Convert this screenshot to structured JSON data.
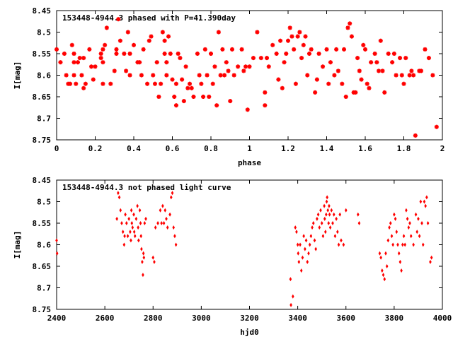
{
  "chart_data": [
    {
      "type": "scatter",
      "title": "153448-4944.3 phased with P=41.390day",
      "xlabel": "phase",
      "ylabel": "I[mag]",
      "xlim": [
        0,
        2
      ],
      "ylim": [
        8.75,
        8.45
      ],
      "y_inverted": true,
      "grid": false,
      "marker_color": "#ff0000",
      "marker": "star",
      "x_ticks": [
        "0",
        "0.2",
        "0.4",
        "0.6",
        "0.8",
        "1",
        "1.2",
        "1.4",
        "1.6",
        "1.8",
        "2"
      ],
      "y_ticks": [
        "8.45",
        "8.5",
        "8.55",
        "8.6",
        "8.65",
        "8.7",
        "8.75"
      ],
      "points": [
        [
          0.0,
          8.54
        ],
        [
          0.02,
          8.57
        ],
        [
          0.04,
          8.55
        ],
        [
          0.05,
          8.6
        ],
        [
          0.06,
          8.62
        ],
        [
          0.07,
          8.62
        ],
        [
          0.08,
          8.53
        ],
        [
          0.09,
          8.55
        ],
        [
          0.09,
          8.57
        ],
        [
          0.09,
          8.6
        ],
        [
          0.1,
          8.62
        ],
        [
          0.11,
          8.57
        ],
        [
          0.12,
          8.56
        ],
        [
          0.13,
          8.6
        ],
        [
          0.14,
          8.63
        ],
        [
          0.14,
          8.56
        ],
        [
          0.15,
          8.62
        ],
        [
          0.17,
          8.54
        ],
        [
          0.18,
          8.58
        ],
        [
          0.19,
          8.61
        ],
        [
          0.2,
          8.58
        ],
        [
          0.23,
          8.56
        ],
        [
          0.23,
          8.55
        ],
        [
          0.24,
          8.54
        ],
        [
          0.24,
          8.57
        ],
        [
          0.24,
          8.62
        ],
        [
          0.25,
          8.53
        ],
        [
          0.26,
          8.49
        ],
        [
          0.28,
          8.62
        ],
        [
          0.3,
          8.59
        ],
        [
          0.31,
          8.54
        ],
        [
          0.31,
          8.55
        ],
        [
          0.32,
          8.47
        ],
        [
          0.33,
          8.52
        ],
        [
          0.35,
          8.55
        ],
        [
          0.36,
          8.59
        ],
        [
          0.37,
          8.5
        ],
        [
          0.38,
          8.55
        ],
        [
          0.38,
          8.6
        ],
        [
          0.4,
          8.53
        ],
        [
          0.42,
          8.57
        ],
        [
          0.43,
          8.57
        ],
        [
          0.44,
          8.6
        ],
        [
          0.45,
          8.54
        ],
        [
          0.47,
          8.62
        ],
        [
          0.48,
          8.52
        ],
        [
          0.49,
          8.51
        ],
        [
          0.5,
          8.6
        ],
        [
          0.51,
          8.62
        ],
        [
          0.52,
          8.57
        ],
        [
          0.53,
          8.65
        ],
        [
          0.54,
          8.62
        ],
        [
          0.55,
          8.5
        ],
        [
          0.56,
          8.52
        ],
        [
          0.56,
          8.55
        ],
        [
          0.57,
          8.57
        ],
        [
          0.57,
          8.6
        ],
        [
          0.58,
          8.51
        ],
        [
          0.59,
          8.55
        ],
        [
          0.6,
          8.61
        ],
        [
          0.61,
          8.65
        ],
        [
          0.62,
          8.62
        ],
        [
          0.62,
          8.67
        ],
        [
          0.63,
          8.55
        ],
        [
          0.64,
          8.56
        ],
        [
          0.65,
          8.61
        ],
        [
          0.66,
          8.66
        ],
        [
          0.67,
          8.58
        ],
        [
          0.68,
          8.63
        ],
        [
          0.69,
          8.62
        ],
        [
          0.7,
          8.63
        ],
        [
          0.71,
          8.65
        ],
        [
          0.73,
          8.55
        ],
        [
          0.74,
          8.6
        ],
        [
          0.75,
          8.62
        ],
        [
          0.76,
          8.65
        ],
        [
          0.77,
          8.54
        ],
        [
          0.78,
          8.6
        ],
        [
          0.79,
          8.65
        ],
        [
          0.8,
          8.55
        ],
        [
          0.81,
          8.62
        ],
        [
          0.82,
          8.58
        ],
        [
          0.83,
          8.67
        ],
        [
          0.84,
          8.5
        ],
        [
          0.85,
          8.6
        ],
        [
          0.86,
          8.54
        ],
        [
          0.87,
          8.6
        ],
        [
          0.88,
          8.57
        ],
        [
          0.89,
          8.59
        ],
        [
          0.9,
          8.66
        ],
        [
          0.91,
          8.54
        ],
        [
          0.92,
          8.6
        ],
        [
          0.94,
          8.58
        ],
        [
          0.96,
          8.54
        ],
        [
          0.97,
          8.59
        ],
        [
          0.98,
          8.58
        ],
        [
          0.99,
          8.68
        ],
        [
          1.0,
          8.58
        ],
        [
          1.02,
          8.56
        ],
        [
          1.04,
          8.5
        ],
        [
          1.06,
          8.56
        ],
        [
          1.08,
          8.67
        ],
        [
          1.08,
          8.64
        ],
        [
          1.09,
          8.56
        ],
        [
          1.1,
          8.58
        ],
        [
          1.12,
          8.53
        ],
        [
          1.14,
          8.55
        ],
        [
          1.15,
          8.61
        ],
        [
          1.16,
          8.52
        ],
        [
          1.17,
          8.63
        ],
        [
          1.18,
          8.57
        ],
        [
          1.19,
          8.55
        ],
        [
          1.2,
          8.52
        ],
        [
          1.21,
          8.49
        ],
        [
          1.22,
          8.51
        ],
        [
          1.23,
          8.54
        ],
        [
          1.24,
          8.62
        ],
        [
          1.25,
          8.51
        ],
        [
          1.26,
          8.5
        ],
        [
          1.27,
          8.56
        ],
        [
          1.28,
          8.53
        ],
        [
          1.29,
          8.51
        ],
        [
          1.3,
          8.6
        ],
        [
          1.31,
          8.55
        ],
        [
          1.32,
          8.54
        ],
        [
          1.34,
          8.64
        ],
        [
          1.35,
          8.61
        ],
        [
          1.36,
          8.55
        ],
        [
          1.38,
          8.58
        ],
        [
          1.4,
          8.54
        ],
        [
          1.41,
          8.62
        ],
        [
          1.42,
          8.57
        ],
        [
          1.44,
          8.6
        ],
        [
          1.45,
          8.54
        ],
        [
          1.46,
          8.59
        ],
        [
          1.48,
          8.62
        ],
        [
          1.49,
          8.54
        ],
        [
          1.5,
          8.65
        ],
        [
          1.51,
          8.49
        ],
        [
          1.52,
          8.48
        ],
        [
          1.53,
          8.51
        ],
        [
          1.54,
          8.64
        ],
        [
          1.55,
          8.64
        ],
        [
          1.56,
          8.56
        ],
        [
          1.57,
          8.59
        ],
        [
          1.58,
          8.61
        ],
        [
          1.59,
          8.53
        ],
        [
          1.6,
          8.54
        ],
        [
          1.61,
          8.62
        ],
        [
          1.62,
          8.63
        ],
        [
          1.63,
          8.57
        ],
        [
          1.65,
          8.55
        ],
        [
          1.66,
          8.57
        ],
        [
          1.67,
          8.59
        ],
        [
          1.68,
          8.52
        ],
        [
          1.69,
          8.59
        ],
        [
          1.7,
          8.64
        ],
        [
          1.72,
          8.55
        ],
        [
          1.74,
          8.57
        ],
        [
          1.75,
          8.55
        ],
        [
          1.76,
          8.6
        ],
        [
          1.78,
          8.56
        ],
        [
          1.79,
          8.6
        ],
        [
          1.8,
          8.62
        ],
        [
          1.81,
          8.56
        ],
        [
          1.83,
          8.6
        ],
        [
          1.84,
          8.59
        ],
        [
          1.85,
          8.6
        ],
        [
          1.86,
          8.74
        ],
        [
          1.88,
          8.59
        ],
        [
          1.89,
          8.59
        ],
        [
          1.91,
          8.54
        ],
        [
          1.93,
          8.56
        ],
        [
          1.95,
          8.6
        ],
        [
          1.97,
          8.72
        ]
      ]
    },
    {
      "type": "scatter",
      "title": "153448-4944.3 not phased light curve",
      "xlabel": "hjd0",
      "ylabel": "I[mag]",
      "xlim": [
        2400,
        4000
      ],
      "ylim": [
        8.75,
        8.45
      ],
      "y_inverted": true,
      "grid": false,
      "marker_color": "#ff0000",
      "marker": "diamond",
      "x_ticks": [
        "2400",
        "2600",
        "2800",
        "3000",
        "3200",
        "3400",
        "3600",
        "3800",
        "4000"
      ],
      "y_ticks": [
        "8.45",
        "8.5",
        "8.55",
        "8.6",
        "8.65",
        "8.7",
        "8.75"
      ],
      "points": [
        [
          2400,
          8.59
        ],
        [
          2402,
          8.62
        ],
        [
          2650,
          8.54
        ],
        [
          2655,
          8.48
        ],
        [
          2660,
          8.49
        ],
        [
          2665,
          8.52
        ],
        [
          2670,
          8.55
        ],
        [
          2675,
          8.57
        ],
        [
          2680,
          8.6
        ],
        [
          2682,
          8.58
        ],
        [
          2685,
          8.53
        ],
        [
          2690,
          8.55
        ],
        [
          2695,
          8.58
        ],
        [
          2700,
          8.54
        ],
        [
          2705,
          8.57
        ],
        [
          2708,
          8.59
        ],
        [
          2710,
          8.52
        ],
        [
          2712,
          8.55
        ],
        [
          2715,
          8.56
        ],
        [
          2720,
          8.53
        ],
        [
          2722,
          8.57
        ],
        [
          2725,
          8.58
        ],
        [
          2730,
          8.54
        ],
        [
          2735,
          8.51
        ],
        [
          2738,
          8.56
        ],
        [
          2740,
          8.59
        ],
        [
          2745,
          8.52
        ],
        [
          2748,
          8.55
        ],
        [
          2750,
          8.58
        ],
        [
          2752,
          8.61
        ],
        [
          2755,
          8.64
        ],
        [
          2758,
          8.67
        ],
        [
          2760,
          8.62
        ],
        [
          2762,
          8.63
        ],
        [
          2765,
          8.55
        ],
        [
          2770,
          8.54
        ],
        [
          2800,
          8.63
        ],
        [
          2805,
          8.64
        ],
        [
          2810,
          8.56
        ],
        [
          2820,
          8.55
        ],
        [
          2830,
          8.52
        ],
        [
          2835,
          8.55
        ],
        [
          2840,
          8.51
        ],
        [
          2845,
          8.55
        ],
        [
          2850,
          8.52
        ],
        [
          2855,
          8.54
        ],
        [
          2860,
          8.56
        ],
        [
          2870,
          8.53
        ],
        [
          2875,
          8.49
        ],
        [
          2880,
          8.48
        ],
        [
          2885,
          8.56
        ],
        [
          2890,
          8.58
        ],
        [
          2895,
          8.6
        ],
        [
          3370,
          8.68
        ],
        [
          3372,
          8.74
        ],
        [
          3380,
          8.72
        ],
        [
          3390,
          8.56
        ],
        [
          3395,
          8.57
        ],
        [
          3400,
          8.6
        ],
        [
          3402,
          8.62
        ],
        [
          3405,
          8.64
        ],
        [
          3410,
          8.6
        ],
        [
          3415,
          8.66
        ],
        [
          3420,
          8.63
        ],
        [
          3425,
          8.58
        ],
        [
          3430,
          8.61
        ],
        [
          3435,
          8.59
        ],
        [
          3440,
          8.64
        ],
        [
          3445,
          8.62
        ],
        [
          3450,
          8.6
        ],
        [
          3455,
          8.58
        ],
        [
          3460,
          8.56
        ],
        [
          3465,
          8.55
        ],
        [
          3470,
          8.59
        ],
        [
          3475,
          8.61
        ],
        [
          3480,
          8.54
        ],
        [
          3485,
          8.53
        ],
        [
          3490,
          8.56
        ],
        [
          3495,
          8.52
        ],
        [
          3500,
          8.55
        ],
        [
          3505,
          8.58
        ],
        [
          3510,
          8.51
        ],
        [
          3512,
          8.54
        ],
        [
          3515,
          8.57
        ],
        [
          3518,
          8.53
        ],
        [
          3520,
          8.5
        ],
        [
          3522,
          8.49
        ],
        [
          3525,
          8.52
        ],
        [
          3528,
          8.55
        ],
        [
          3530,
          8.51
        ],
        [
          3532,
          8.53
        ],
        [
          3535,
          8.56
        ],
        [
          3540,
          8.52
        ],
        [
          3545,
          8.55
        ],
        [
          3550,
          8.53
        ],
        [
          3555,
          8.58
        ],
        [
          3560,
          8.54
        ],
        [
          3565,
          8.57
        ],
        [
          3570,
          8.6
        ],
        [
          3575,
          8.53
        ],
        [
          3580,
          8.59
        ],
        [
          3590,
          8.6
        ],
        [
          3600,
          8.52
        ],
        [
          3650,
          8.53
        ],
        [
          3655,
          8.55
        ],
        [
          3740,
          8.62
        ],
        [
          3745,
          8.63
        ],
        [
          3750,
          8.66
        ],
        [
          3755,
          8.67
        ],
        [
          3760,
          8.68
        ],
        [
          3765,
          8.62
        ],
        [
          3770,
          8.65
        ],
        [
          3775,
          8.59
        ],
        [
          3780,
          8.56
        ],
        [
          3785,
          8.55
        ],
        [
          3790,
          8.58
        ],
        [
          3795,
          8.6
        ],
        [
          3800,
          8.53
        ],
        [
          3805,
          8.54
        ],
        [
          3810,
          8.57
        ],
        [
          3815,
          8.6
        ],
        [
          3820,
          8.62
        ],
        [
          3825,
          8.64
        ],
        [
          3830,
          8.66
        ],
        [
          3835,
          8.6
        ],
        [
          3840,
          8.58
        ],
        [
          3845,
          8.6
        ],
        [
          3850,
          8.52
        ],
        [
          3855,
          8.54
        ],
        [
          3860,
          8.56
        ],
        [
          3865,
          8.55
        ],
        [
          3870,
          8.58
        ],
        [
          3880,
          8.6
        ],
        [
          3890,
          8.53
        ],
        [
          3895,
          8.57
        ],
        [
          3900,
          8.54
        ],
        [
          3905,
          8.58
        ],
        [
          3910,
          8.5
        ],
        [
          3915,
          8.55
        ],
        [
          3920,
          8.6
        ],
        [
          3925,
          8.5
        ],
        [
          3930,
          8.51
        ],
        [
          3935,
          8.49
        ],
        [
          3940,
          8.55
        ],
        [
          3950,
          8.64
        ],
        [
          3955,
          8.63
        ]
      ]
    }
  ]
}
